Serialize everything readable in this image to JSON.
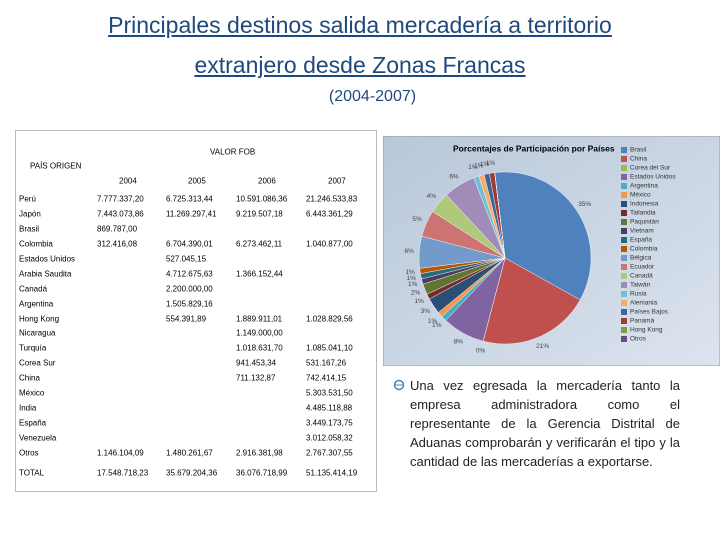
{
  "header": {
    "title_lines": [
      "Principales destinos salida mercadería a territorio",
      "extranjero desde Zonas Francas"
    ],
    "subtitle": "(2004-2007)"
  },
  "table": {
    "group_header": "VALOR FOB",
    "row_header": "PAÍS ORIGEN",
    "columns": [
      "2004",
      "2005",
      "2006",
      "2007"
    ],
    "rows": [
      [
        "Perú",
        "7.777.337,20",
        "6.725.313,44",
        "10.591.086,36",
        "21.246.533,83"
      ],
      [
        "Japón",
        "7.443.073,86",
        "11.269.297,41",
        "9.219.507,18",
        "6.443.361,29"
      ],
      [
        "Brasil",
        "869.787,00",
        null,
        null,
        null
      ],
      [
        "Colombia",
        "312.416,08",
        "6.704.390,01",
        "6.273.462,11",
        "1.040.877,00"
      ],
      [
        "Estados Unidos",
        null,
        "527.045,15",
        null,
        null
      ],
      [
        "Arabia Saudita",
        null,
        "4.712.675,63",
        "1.366.152,44",
        null
      ],
      [
        "Canadá",
        null,
        "2.200.000,00",
        null,
        null
      ],
      [
        "Argentina",
        null,
        "1.505.829,16",
        null,
        null
      ],
      [
        "Hong Kong",
        null,
        "554.391,89",
        "1.889.911,01",
        "1.028.829,56"
      ],
      [
        "Nicaragua",
        null,
        null,
        "1.149.000,00",
        null
      ],
      [
        "Turquía",
        null,
        null,
        "1.018.631,70",
        "1.085.041,10"
      ],
      [
        "Corea Sur",
        null,
        null,
        "941.453,34",
        "531.167,26"
      ],
      [
        "China",
        null,
        null,
        "711.132,87",
        "742.414,15"
      ],
      [
        "México",
        null,
        null,
        null,
        "5.303.531,50"
      ],
      [
        "India",
        null,
        null,
        null,
        "4.485.118,88"
      ],
      [
        "España",
        null,
        null,
        null,
        "3.449.173,75"
      ],
      [
        "Venezuela",
        null,
        null,
        null,
        "3.012.058,32"
      ],
      [
        "Otros",
        "1.146.104,09",
        "1.480.261,67",
        "2.916.381,98",
        "2.767.307,55"
      ],
      [
        "TOTAL",
        "17.548.718,23",
        "35.679.204,36",
        "36.076.718,99",
        "51.135.414,19"
      ]
    ]
  },
  "chart_data": {
    "type": "pie",
    "title": "Porcentajes de Participación por Países",
    "categories": [
      "Brasil",
      "China",
      "Corea del Sur",
      "Estados Unidos",
      "Argentina",
      "México",
      "Indonesia",
      "Tailandia",
      "Paquistán",
      "Vietnam",
      "España",
      "Colombia",
      "Bélgica",
      "Ecuador",
      "Canadá",
      "Taiwán",
      "Rusia",
      "Alemania",
      "Países Bajos",
      "Panamá",
      "Hong Kong",
      "Otros"
    ],
    "values": [
      35,
      21,
      0,
      8,
      1,
      1,
      3,
      1,
      2,
      1,
      1,
      1,
      6,
      5,
      4,
      6,
      1,
      1,
      1,
      1,
      0,
      0
    ],
    "value_labels": [
      "35%",
      "21%",
      "0%",
      "8%",
      "1%",
      "1%",
      "3%",
      "1%",
      "2%",
      "1%",
      "1%",
      "1%",
      "6%",
      "5%",
      "4%",
      "6%",
      "1%",
      "1%",
      "1%",
      "1%",
      null,
      null
    ],
    "colors": [
      "#4F81BD",
      "#C0504D",
      "#9BBB59",
      "#8064A2",
      "#4BACC6",
      "#F79646",
      "#2C4D75",
      "#772C2A",
      "#5F7530",
      "#4D3B62",
      "#276A7C",
      "#B65708",
      "#729ACA",
      "#CD7371",
      "#AFC97A",
      "#A18BB8",
      "#6FC0D5",
      "#F9AB6B",
      "#3B679C",
      "#9F3B38",
      "#7F9C40",
      "#664E82"
    ]
  },
  "body_text": "Una vez egresada la mercadería tanto la empresa administradora como el representante de la Gerencia Distrital de Aduanas comprobarán y verificarán el tipo y la cantidad de las mercaderías a exportarse."
}
